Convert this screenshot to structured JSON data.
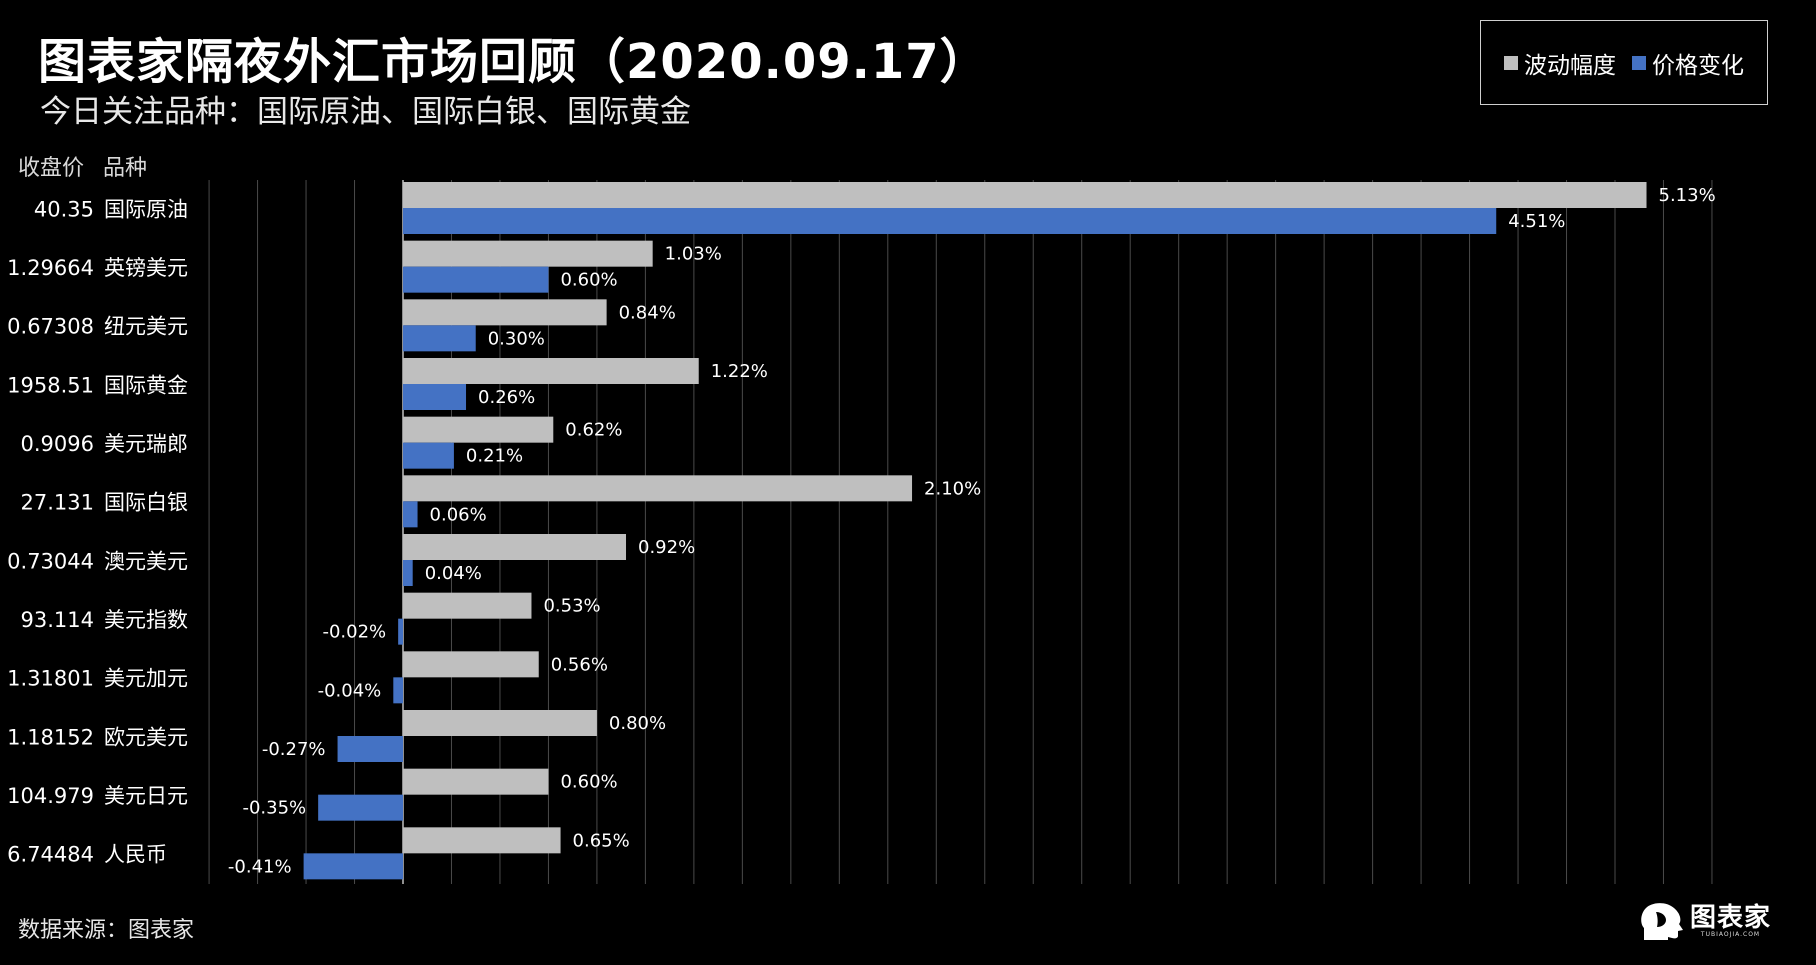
{
  "title": "图表家隔夜外汇市场回顾（2020.09.17）",
  "subtitle": "今日关注品种：国际原油、国际白银、国际黄金",
  "legend": {
    "volatility": "波动幅度",
    "price_change": "价格变化"
  },
  "headers": {
    "close_price": "收盘价",
    "instrument": "品种"
  },
  "colors": {
    "volatility": "#BFBFBF",
    "price_change": "#4472C4",
    "background": "#000000"
  },
  "source": "数据来源：图表家",
  "brand": {
    "name": "图表家",
    "domain": "TUBIAOJIA.COM",
    "logo_icon": "head-silhouette-icon"
  },
  "chart_data": {
    "type": "bar",
    "orientation": "horizontal",
    "categories": [
      "国际原油",
      "英镑美元",
      "纽元美元",
      "国际黄金",
      "美元瑞郎",
      "国际白银",
      "澳元美元",
      "美元指数",
      "美元加元",
      "欧元美元",
      "美元日元",
      "人民币"
    ],
    "close_prices": [
      "40.35",
      "1.29664",
      "0.67308",
      "1958.51",
      "0.9096",
      "27.131",
      "0.73044",
      "93.114",
      "1.31801",
      "1.18152",
      "104.979",
      "6.74484"
    ],
    "series": [
      {
        "name": "波动幅度",
        "values": [
          5.13,
          1.03,
          0.84,
          1.22,
          0.62,
          2.1,
          0.92,
          0.53,
          0.56,
          0.8,
          0.6,
          0.65
        ],
        "labels": [
          "5.13%",
          "1.03%",
          "0.84%",
          "1.22%",
          "0.62%",
          "2.10%",
          "0.92%",
          "0.53%",
          "0.56%",
          "0.80%",
          "0.60%",
          "0.65%"
        ]
      },
      {
        "name": "价格变化",
        "values": [
          4.51,
          0.6,
          0.3,
          0.26,
          0.21,
          0.06,
          0.04,
          -0.02,
          -0.04,
          -0.27,
          -0.35,
          -0.41
        ],
        "labels": [
          "4.51%",
          "0.60%",
          "0.30%",
          "0.26%",
          "0.21%",
          "0.06%",
          "0.04%",
          "-0.02%",
          "-0.04%",
          "-0.27%",
          "-0.35%",
          "-0.41%"
        ]
      }
    ],
    "xlim": [
      -0.8,
      5.6
    ],
    "grid": true,
    "unit": "%"
  }
}
